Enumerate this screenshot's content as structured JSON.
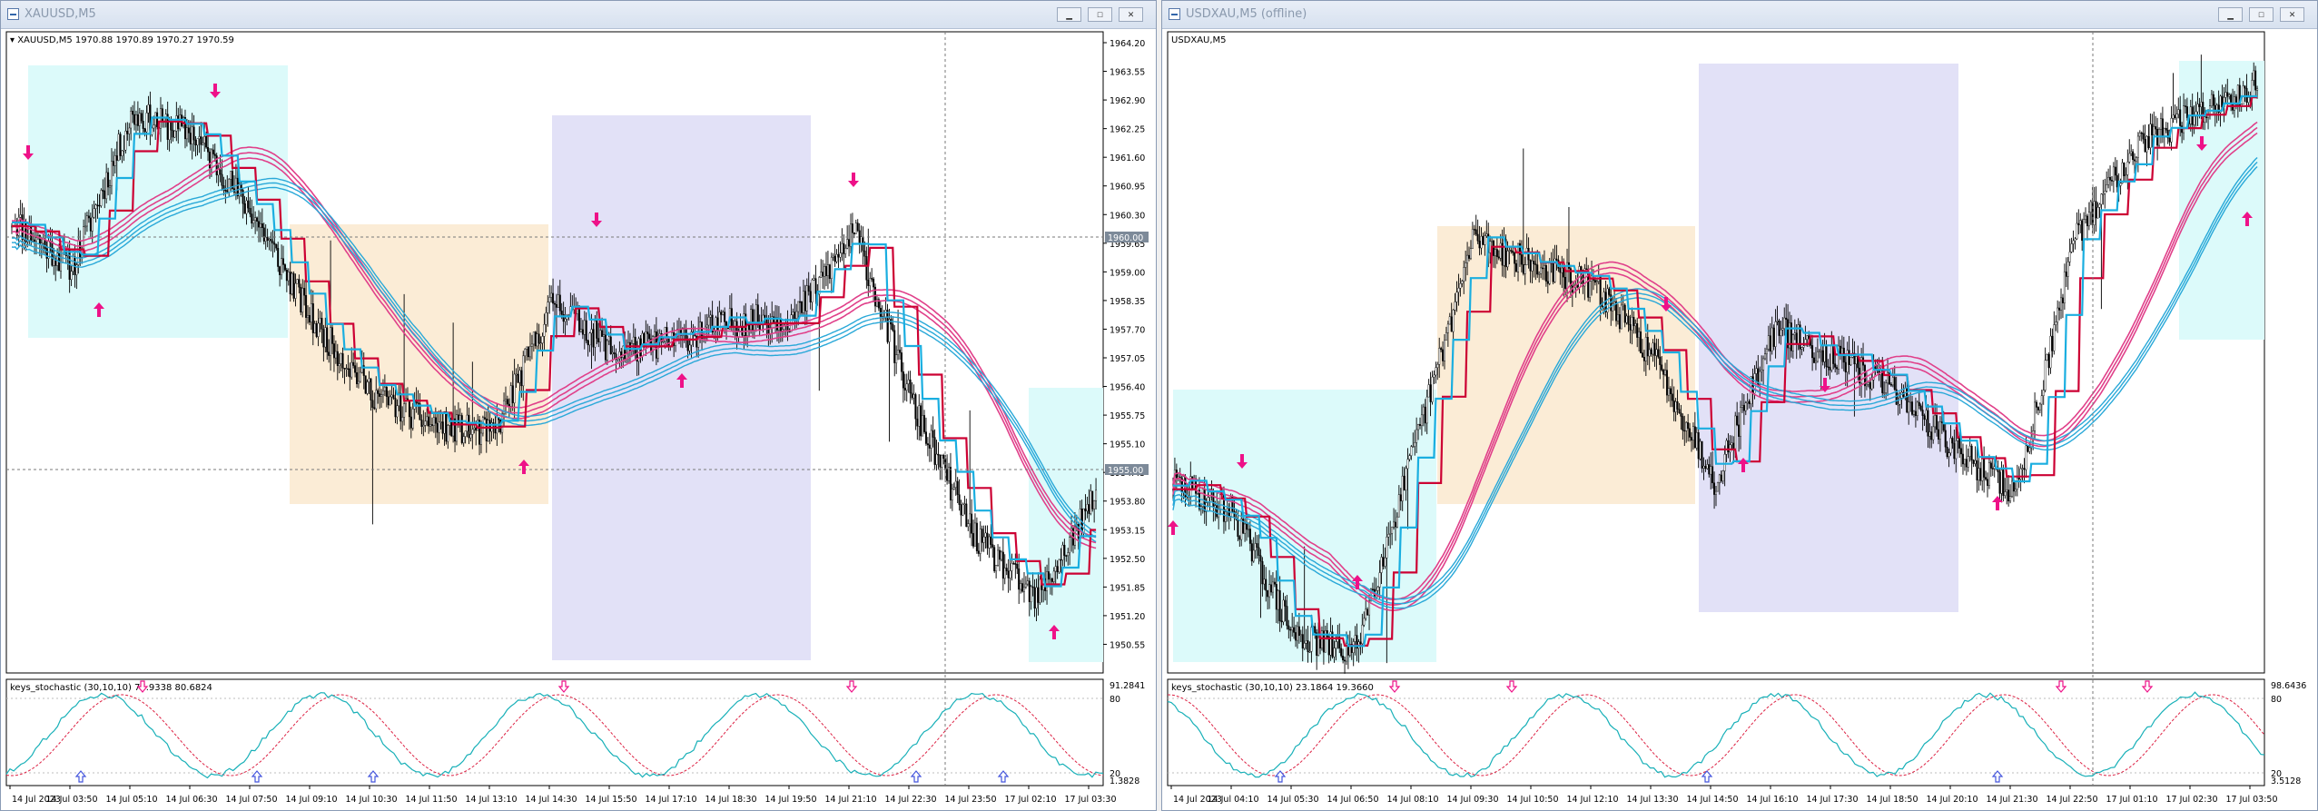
{
  "windows": [
    {
      "title": "XAUUSD,M5",
      "buttons": {
        "minimize": "▁",
        "maximize": "☐",
        "close": "✕"
      },
      "chart_label": "▾ XAUUSD,M5  1970.88 1970.89 1970.27 1970.59",
      "price_axis": [
        "1964.20",
        "1963.55",
        "1962.90",
        "1962.25",
        "1961.60",
        "1960.95",
        "1960.30",
        "1959.65",
        "1959.00",
        "1958.35",
        "1957.70",
        "1957.05",
        "1956.40",
        "1955.75",
        "1955.10",
        "1954.45",
        "1953.80",
        "1953.15",
        "1952.50",
        "1951.85",
        "1951.20",
        "1950.55"
      ],
      "price_tags": [
        "1960.00",
        "1955.00"
      ],
      "indicator_label": "keys_stochastic (30,10,10) 76.9338 80.6824",
      "indicator_axis": [
        "91.2841",
        "80",
        "20",
        "1.3828"
      ],
      "time_axis": [
        "14 Jul 2023",
        "14 Jul 03:50",
        "14 Jul 05:10",
        "14 Jul 06:30",
        "14 Jul 07:50",
        "14 Jul 09:10",
        "14 Jul 10:30",
        "14 Jul 11:50",
        "14 Jul 13:10",
        "14 Jul 14:30",
        "14 Jul 15:50",
        "14 Jul 17:10",
        "14 Jul 18:30",
        "14 Jul 19:50",
        "14 Jul 21:10",
        "14 Jul 22:30",
        "14 Jul 23:50",
        "17 Jul 02:10",
        "17 Jul 03:30"
      ]
    },
    {
      "title": "USDXAU,M5 (offline)",
      "buttons": {
        "minimize": "▁",
        "maximize": "☐",
        "close": "✕"
      },
      "chart_label": "USDXAU,M5",
      "price_axis": [],
      "price_tags": [],
      "indicator_label": "keys_stochastic (30,10,10) 23.1864 19.3660",
      "indicator_axis": [
        "98.6436",
        "80",
        "20",
        "3.5128"
      ],
      "time_axis": [
        "14 Jul 2023",
        "14 Jul 04:10",
        "14 Jul 05:30",
        "14 Jul 06:50",
        "14 Jul 08:10",
        "14 Jul 09:30",
        "14 Jul 10:50",
        "14 Jul 12:10",
        "14 Jul 13:30",
        "14 Jul 14:50",
        "14 Jul 16:10",
        "14 Jul 17:30",
        "14 Jul 18:50",
        "14 Jul 20:10",
        "14 Jul 21:30",
        "14 Jul 22:50",
        "17 Jul 01:10",
        "17 Jul 02:30",
        "17 Jul 03:50"
      ]
    }
  ],
  "colors": {
    "candle": "#000000",
    "grid_dash": "#7a7a7a",
    "ma_pink": "#e0408a",
    "ma_red": "#cc0033",
    "ma_blue": "#1aaee0",
    "ema_blue": "#29a8d8",
    "box_cyan": "#dcfafa",
    "box_orange": "#fbecd6",
    "box_lavender": "#e2e1f7",
    "arrow_magenta": "#ee1188",
    "stoch_main": "#18b0b8",
    "stoch_signal": "#dd2244",
    "stoch_arrow": "#4455dd"
  },
  "chart_data": [
    {
      "type": "line",
      "title": "XAUUSD,M5",
      "ylim": [
        1950.55,
        1964.2
      ],
      "x": [
        "14 Jul 2023",
        "14 Jul 03:50",
        "14 Jul 05:10",
        "14 Jul 06:30",
        "14 Jul 07:50",
        "14 Jul 09:10",
        "14 Jul 10:30",
        "14 Jul 11:50",
        "14 Jul 13:10",
        "14 Jul 14:30",
        "14 Jul 15:50",
        "14 Jul 17:10",
        "14 Jul 18:30",
        "14 Jul 19:50",
        "14 Jul 21:10",
        "14 Jul 22:30",
        "14 Jul 23:50",
        "17 Jul 02:10",
        "17 Jul 03:30"
      ],
      "series": [
        {
          "values": [
            1960.5,
            1959.4,
            1962.8,
            1962.4,
            1960.6,
            1958.2,
            1956.6,
            1955.9,
            1955.7,
            1958.7,
            1957.5,
            1957.8,
            1958.2,
            1958.3,
            1960.2,
            1956.2,
            1953.4,
            1952.0,
            1954.3
          ]
        }
      ]
    },
    {
      "type": "line",
      "title": "USDXAU,M5",
      "x": [
        "14 Jul 2023",
        "14 Jul 04:10",
        "14 Jul 05:30",
        "14 Jul 06:50",
        "14 Jul 08:10",
        "14 Jul 09:30",
        "14 Jul 10:50",
        "14 Jul 12:10",
        "14 Jul 13:30",
        "14 Jul 14:50",
        "14 Jul 16:10",
        "14 Jul 17:30",
        "14 Jul 18:50",
        "14 Jul 20:10",
        "14 Jul 21:30",
        "14 Jul 22:50",
        "17 Jul 01:10",
        "17 Jul 02:30",
        "17 Jul 03:50"
      ],
      "series": [
        {
          "values": [
            0.3,
            0.25,
            0.05,
            0.02,
            0.35,
            0.7,
            0.65,
            0.62,
            0.5,
            0.3,
            0.55,
            0.5,
            0.45,
            0.35,
            0.28,
            0.7,
            0.85,
            0.9,
            0.95
          ]
        }
      ]
    }
  ]
}
